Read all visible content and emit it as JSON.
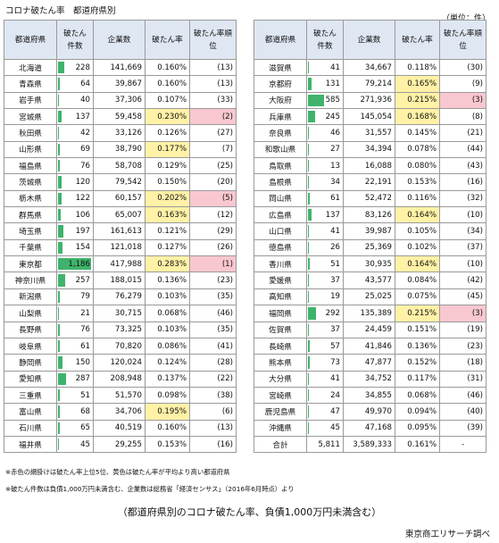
{
  "title": "コロナ破たん率　都道府県別",
  "unit": "（単位：件）",
  "headers": {
    "pref": "都道府県",
    "cases": "破たん件数",
    "companies": "企業数",
    "rate": "破たん率",
    "rank": "破たん率順位"
  },
  "colors": {
    "bar": "#3fb36b",
    "yellow": "#fff1a6",
    "pink": "#f9c7d0",
    "header": "#dfe7f3"
  },
  "max_cases": 1186,
  "left": [
    {
      "pref": "北海道",
      "cases": "228",
      "companies": "141,669",
      "rate": "0.160%",
      "rank": "(13)"
    },
    {
      "pref": "青森県",
      "cases": "64",
      "companies": "39,867",
      "rate": "0.160%",
      "rank": "(13)"
    },
    {
      "pref": "岩手県",
      "cases": "40",
      "companies": "37,306",
      "rate": "0.107%",
      "rank": "(33)"
    },
    {
      "pref": "宮城県",
      "cases": "137",
      "companies": "59,458",
      "rate": "0.230%",
      "rank": "(2)",
      "hi": "yellow",
      "rk": "pink"
    },
    {
      "pref": "秋田県",
      "cases": "42",
      "companies": "33,126",
      "rate": "0.126%",
      "rank": "(27)"
    },
    {
      "pref": "山形県",
      "cases": "69",
      "companies": "38,790",
      "rate": "0.177%",
      "rank": "(7)",
      "hi": "yellow"
    },
    {
      "pref": "福島県",
      "cases": "76",
      "companies": "58,708",
      "rate": "0.129%",
      "rank": "(25)"
    },
    {
      "pref": "茨城県",
      "cases": "120",
      "companies": "79,542",
      "rate": "0.150%",
      "rank": "(20)"
    },
    {
      "pref": "栃木県",
      "cases": "122",
      "companies": "60,157",
      "rate": "0.202%",
      "rank": "(5)",
      "hi": "yellow",
      "rk": "pink"
    },
    {
      "pref": "群馬県",
      "cases": "106",
      "companies": "65,007",
      "rate": "0.163%",
      "rank": "(12)",
      "hi": "yellow"
    },
    {
      "pref": "埼玉県",
      "cases": "197",
      "companies": "161,613",
      "rate": "0.121%",
      "rank": "(29)"
    },
    {
      "pref": "千葉県",
      "cases": "154",
      "companies": "121,018",
      "rate": "0.127%",
      "rank": "(26)"
    },
    {
      "pref": "東京都",
      "cases": "1,186",
      "companies": "417,988",
      "rate": "0.283%",
      "rank": "(1)",
      "hi": "yellow",
      "rk": "pink"
    },
    {
      "pref": "神奈川県",
      "cases": "257",
      "companies": "188,015",
      "rate": "0.136%",
      "rank": "(23)"
    },
    {
      "pref": "新潟県",
      "cases": "79",
      "companies": "76,279",
      "rate": "0.103%",
      "rank": "(35)"
    },
    {
      "pref": "山梨県",
      "cases": "21",
      "companies": "30,715",
      "rate": "0.068%",
      "rank": "(46)"
    },
    {
      "pref": "長野県",
      "cases": "76",
      "companies": "73,325",
      "rate": "0.103%",
      "rank": "(35)"
    },
    {
      "pref": "岐阜県",
      "cases": "61",
      "companies": "70,820",
      "rate": "0.086%",
      "rank": "(41)"
    },
    {
      "pref": "静岡県",
      "cases": "150",
      "companies": "120,024",
      "rate": "0.124%",
      "rank": "(28)"
    },
    {
      "pref": "愛知県",
      "cases": "287",
      "companies": "208,948",
      "rate": "0.137%",
      "rank": "(22)"
    },
    {
      "pref": "三重県",
      "cases": "51",
      "companies": "51,570",
      "rate": "0.098%",
      "rank": "(38)"
    },
    {
      "pref": "富山県",
      "cases": "68",
      "companies": "34,706",
      "rate": "0.195%",
      "rank": "(6)",
      "hi": "yellow"
    },
    {
      "pref": "石川県",
      "cases": "65",
      "companies": "40,519",
      "rate": "0.160%",
      "rank": "(13)"
    },
    {
      "pref": "福井県",
      "cases": "45",
      "companies": "29,255",
      "rate": "0.153%",
      "rank": "(16)"
    }
  ],
  "right": [
    {
      "pref": "滋賀県",
      "cases": "41",
      "companies": "34,667",
      "rate": "0.118%",
      "rank": "(30)"
    },
    {
      "pref": "京都府",
      "cases": "131",
      "companies": "79,214",
      "rate": "0.165%",
      "rank": "(9)",
      "hi": "yellow"
    },
    {
      "pref": "大阪府",
      "cases": "585",
      "companies": "271,936",
      "rate": "0.215%",
      "rank": "(3)",
      "hi": "yellow",
      "rk": "pink"
    },
    {
      "pref": "兵庫県",
      "cases": "245",
      "companies": "145,054",
      "rate": "0.168%",
      "rank": "(8)",
      "hi": "yellow"
    },
    {
      "pref": "奈良県",
      "cases": "46",
      "companies": "31,557",
      "rate": "0.145%",
      "rank": "(21)"
    },
    {
      "pref": "和歌山県",
      "cases": "27",
      "companies": "34,394",
      "rate": "0.078%",
      "rank": "(44)"
    },
    {
      "pref": "鳥取県",
      "cases": "13",
      "companies": "16,088",
      "rate": "0.080%",
      "rank": "(43)"
    },
    {
      "pref": "島根県",
      "cases": "34",
      "companies": "22,191",
      "rate": "0.153%",
      "rank": "(16)"
    },
    {
      "pref": "岡山県",
      "cases": "61",
      "companies": "52,472",
      "rate": "0.116%",
      "rank": "(32)"
    },
    {
      "pref": "広島県",
      "cases": "137",
      "companies": "83,126",
      "rate": "0.164%",
      "rank": "(10)",
      "hi": "yellow"
    },
    {
      "pref": "山口県",
      "cases": "41",
      "companies": "39,987",
      "rate": "0.105%",
      "rank": "(34)"
    },
    {
      "pref": "徳島県",
      "cases": "26",
      "companies": "25,369",
      "rate": "0.102%",
      "rank": "(37)"
    },
    {
      "pref": "香川県",
      "cases": "51",
      "companies": "30,935",
      "rate": "0.164%",
      "rank": "(10)",
      "hi": "yellow"
    },
    {
      "pref": "愛媛県",
      "cases": "37",
      "companies": "43,577",
      "rate": "0.084%",
      "rank": "(42)"
    },
    {
      "pref": "高知県",
      "cases": "19",
      "companies": "25,025",
      "rate": "0.075%",
      "rank": "(45)"
    },
    {
      "pref": "福岡県",
      "cases": "292",
      "companies": "135,389",
      "rate": "0.215%",
      "rank": "(3)",
      "hi": "yellow",
      "rk": "pink"
    },
    {
      "pref": "佐賀県",
      "cases": "37",
      "companies": "24,459",
      "rate": "0.151%",
      "rank": "(19)"
    },
    {
      "pref": "長崎県",
      "cases": "57",
      "companies": "41,846",
      "rate": "0.136%",
      "rank": "(23)"
    },
    {
      "pref": "熊本県",
      "cases": "73",
      "companies": "47,877",
      "rate": "0.152%",
      "rank": "(18)"
    },
    {
      "pref": "大分県",
      "cases": "41",
      "companies": "34,752",
      "rate": "0.117%",
      "rank": "(31)"
    },
    {
      "pref": "宮崎県",
      "cases": "24",
      "companies": "34,855",
      "rate": "0.068%",
      "rank": "(46)"
    },
    {
      "pref": "鹿児島県",
      "cases": "47",
      "companies": "49,970",
      "rate": "0.094%",
      "rank": "(40)"
    },
    {
      "pref": "沖縄県",
      "cases": "45",
      "companies": "47,168",
      "rate": "0.095%",
      "rank": "(39)"
    },
    {
      "pref": "合計",
      "cases": "5,811",
      "companies": "3,589,333",
      "rate": "0.161%",
      "rank": "-",
      "total": true
    }
  ],
  "notes": {
    "note1": "※赤色の網掛けは破たん率上位5位、黄色は破たん率が平均より高い都道府県",
    "note2": "※破たん件数は負債1,000万円未満含む、企業数は総務省「経済センサス」（2016年6月時点）より"
  },
  "caption": "（都道府県別のコロナ破たん率、負債1,000万円未満含む）",
  "source": "東京商工リサーチ調べ"
}
